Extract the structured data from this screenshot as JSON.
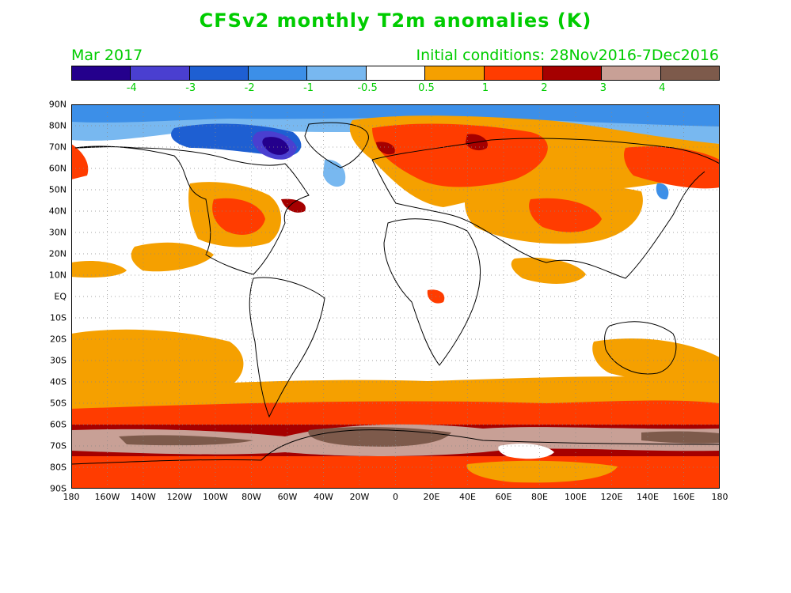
{
  "title": "CFSv2 monthly T2m anomalies (K)",
  "valid_month": "Mar 2017",
  "initial_conditions": "Initial conditions: 28Nov2016-7Dec2016",
  "colorbar": {
    "colors": [
      "#24008c",
      "#4a3fd0",
      "#1e5fd2",
      "#3c8fe8",
      "#78b8f0",
      "#ffffff",
      "#f5a000",
      "#ff3c00",
      "#a50000",
      "#c8a096",
      "#7d5a4b"
    ],
    "labels": [
      "-4",
      "-3",
      "-2",
      "-1",
      "-0.5",
      "0.5",
      "1",
      "2",
      "3",
      "4"
    ]
  },
  "lat_labels": [
    "90N",
    "80N",
    "70N",
    "60N",
    "50N",
    "40N",
    "30N",
    "20N",
    "10N",
    "EQ",
    "10S",
    "20S",
    "30S",
    "40S",
    "50S",
    "60S",
    "70S",
    "80S",
    "90S"
  ],
  "lon_labels": [
    "180",
    "160W",
    "140W",
    "120W",
    "100W",
    "80W",
    "60W",
    "40W",
    "20W",
    "0",
    "20E",
    "40E",
    "60E",
    "80E",
    "100E",
    "120E",
    "140E",
    "160E",
    "180"
  ],
  "map_data": {
    "projection": "cylindrical equidistant",
    "lon_range": [
      -180,
      180
    ],
    "lat_range": [
      -90,
      90
    ],
    "grid": true,
    "anomaly_regions": [
      {
        "name": "arctic-cold",
        "level": "-0.5 to -2"
      },
      {
        "name": "greenland-baffin-cold",
        "level": "-1 to -4"
      },
      {
        "name": "siberia-warm",
        "level": "1 to 3"
      },
      {
        "name": "eastern-us-warm",
        "level": "1 to 3"
      },
      {
        "name": "southern-ocean-warm",
        "level": "1 to 3"
      },
      {
        "name": "antarctica-warm",
        "level": "2 to 4+"
      }
    ]
  }
}
